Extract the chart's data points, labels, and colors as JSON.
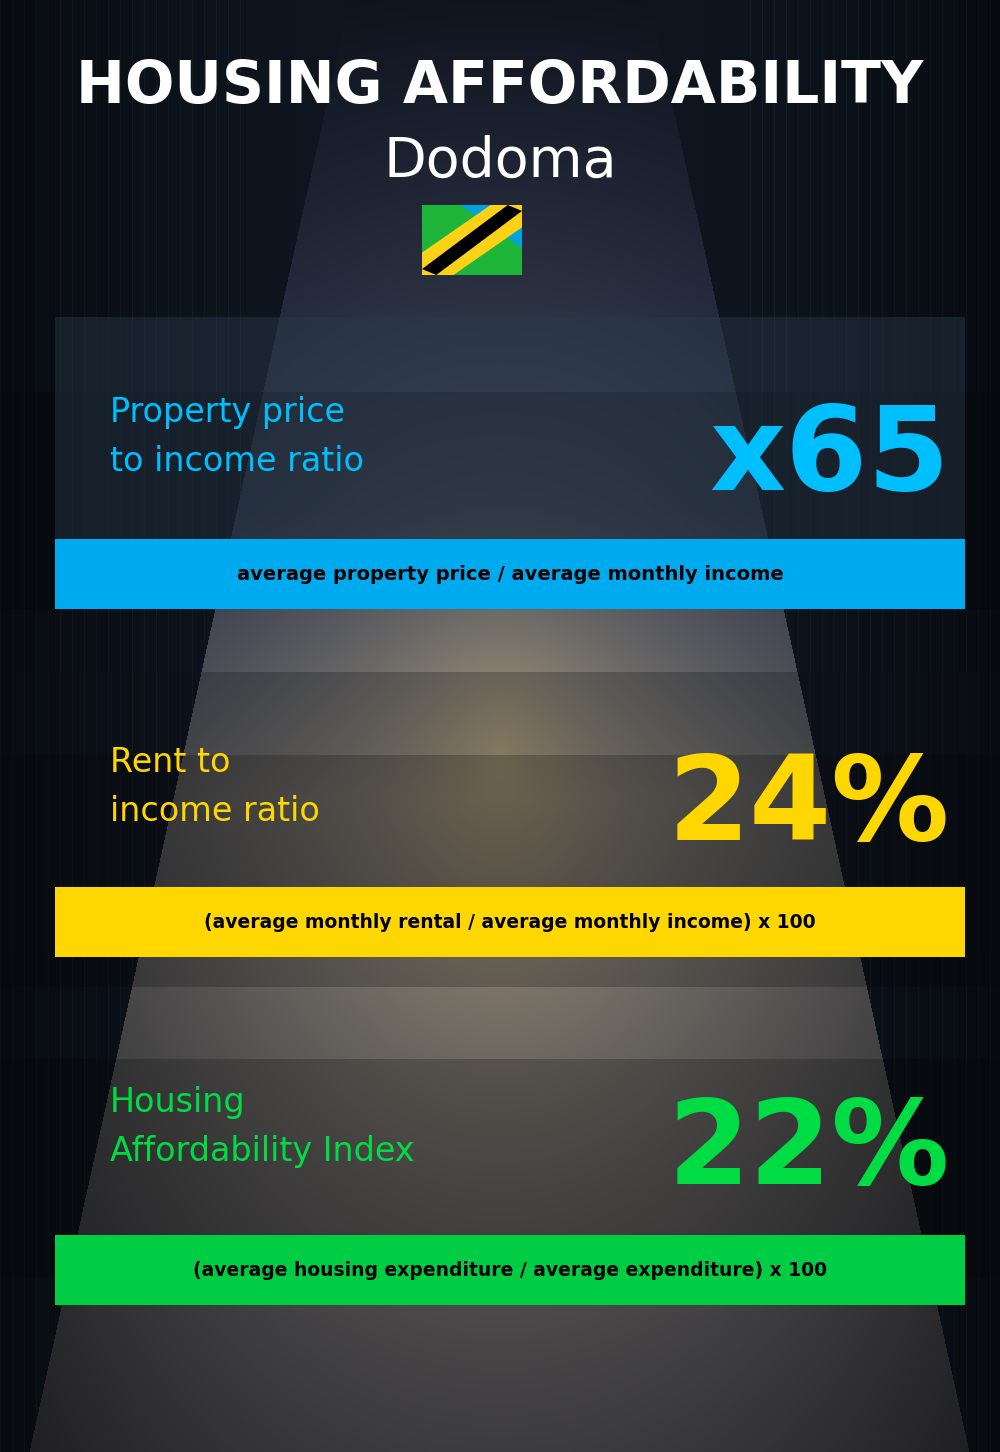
{
  "title_line1": "HOUSING AFFORDABILITY",
  "title_line2": "Dodoma",
  "title_color": "#ffffff",
  "title_line2_color": "#ffffff",
  "bg_color": "#0d1117",
  "section1_label": "Property price\nto income ratio",
  "section1_value": "x65",
  "section1_label_color": "#00bfff",
  "section1_value_color": "#00bfff",
  "section1_formula": "average property price / average monthly income",
  "section1_formula_bg": "#00aaee",
  "section1_formula_color": "#000000",
  "section2_label": "Rent to\nincome ratio",
  "section2_value": "24%",
  "section2_label_color": "#ffd700",
  "section2_value_color": "#ffd700",
  "section2_formula": "(average monthly rental / average monthly income) x 100",
  "section2_formula_bg": "#ffd700",
  "section2_formula_color": "#000000",
  "section3_label": "Housing\nAffordability Index",
  "section3_value": "22%",
  "section3_label_color": "#00dd44",
  "section3_value_color": "#00dd44",
  "section3_formula": "(average housing expenditure / average expenditure) x 100",
  "section3_formula_bg": "#00cc44",
  "section3_formula_color": "#000000",
  "flag_colors": {
    "green": "#1eb53a",
    "yellow": "#fcd116",
    "blue": "#00a3dd",
    "black": "#000000"
  }
}
